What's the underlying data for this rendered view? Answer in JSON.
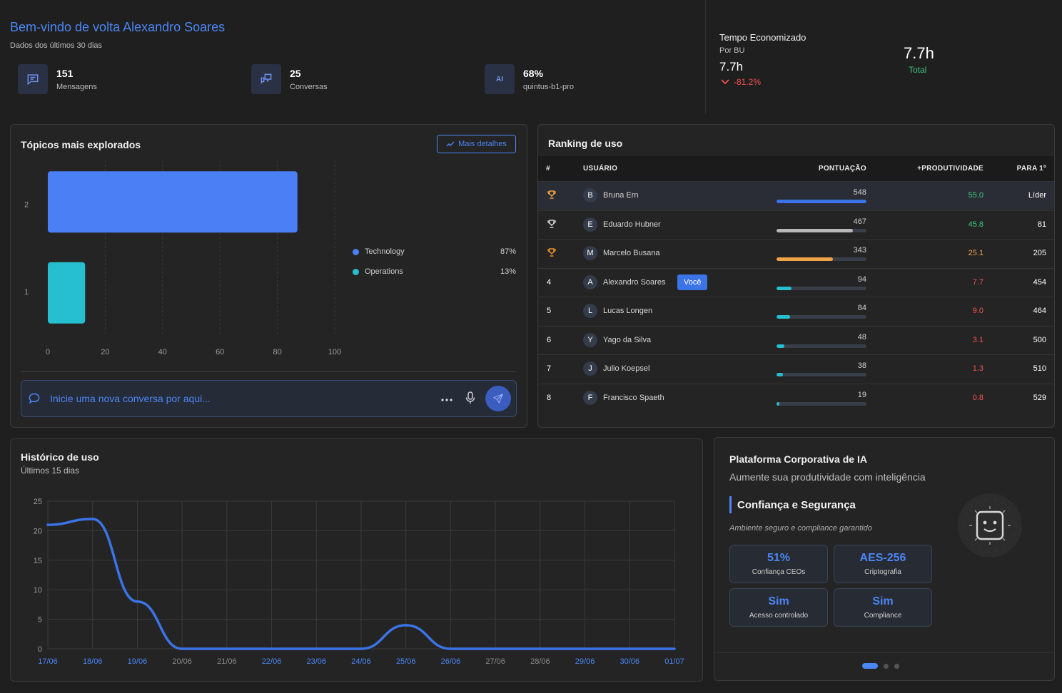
{
  "header": {
    "welcome": "Bem-vindo de volta Alexandro Soares",
    "subtitle": "Dados dos últimos 30 dias",
    "stats": [
      {
        "value": "151",
        "label": "Mensagens",
        "icon": "message-icon"
      },
      {
        "value": "25",
        "label": "Conversas",
        "icon": "conversations-icon"
      },
      {
        "value": "68%",
        "label": "quintus-b1-pro",
        "icon": "ai-icon",
        "icon_text": "AI"
      }
    ],
    "time_saved": {
      "title": "Tempo Economizado",
      "by": "Por BU",
      "value": "7.7h",
      "delta": "-81.2%",
      "total_value": "7.7h",
      "total_label": "Total"
    }
  },
  "topics": {
    "title": "Tópicos mais explorados",
    "more_button": "Mais detalhes",
    "legend": [
      {
        "name": "Technology",
        "pct": "87%",
        "color": "#4b7ff5"
      },
      {
        "name": "Operations",
        "pct": "13%",
        "color": "#26bfcf"
      }
    ],
    "chat_placeholder": "Inicie uma nova conversa por aqui..."
  },
  "ranking": {
    "title": "Ranking de uso",
    "columns": [
      "#",
      "USUÁRIO",
      "PONTUAÇÃO",
      "+PRODUTIVIDADE",
      "PARA 1º"
    ],
    "you_badge": "Você",
    "rows": [
      {
        "rank": "",
        "trophy": "gold",
        "initial": "B",
        "name": "Bruna Ern",
        "score": "548",
        "pct": 1.0,
        "bar_color": "#3b74e6",
        "prod": "55.0",
        "prod_color": "#3ec47c",
        "para": "Líder",
        "you": false
      },
      {
        "rank": "",
        "trophy": "silver",
        "initial": "E",
        "name": "Eduardo Hubner",
        "score": "467",
        "pct": 0.85,
        "bar_color": "#b8b8b8",
        "prod": "45.8",
        "prod_color": "#3ec47c",
        "para": "81",
        "you": false
      },
      {
        "rank": "",
        "trophy": "bronze",
        "initial": "M",
        "name": "Marcelo Busana",
        "score": "343",
        "pct": 0.63,
        "bar_color": "#f0a347",
        "prod": "25.1",
        "prod_color": "#f0a347",
        "para": "205",
        "you": false
      },
      {
        "rank": "4",
        "trophy": "",
        "initial": "A",
        "name": "Alexandro Soares",
        "score": "94",
        "pct": 0.17,
        "bar_color": "#26bfcf",
        "prod": "7.7",
        "prod_color": "#ef5350",
        "para": "454",
        "you": true
      },
      {
        "rank": "5",
        "trophy": "",
        "initial": "L",
        "name": "Lucas Longen",
        "score": "84",
        "pct": 0.15,
        "bar_color": "#26bfcf",
        "prod": "9.0",
        "prod_color": "#ef5350",
        "para": "464",
        "you": false
      },
      {
        "rank": "6",
        "trophy": "",
        "initial": "Y",
        "name": "Yago da Silva",
        "score": "48",
        "pct": 0.09,
        "bar_color": "#26bfcf",
        "prod": "3.1",
        "prod_color": "#ef5350",
        "para": "500",
        "you": false
      },
      {
        "rank": "7",
        "trophy": "",
        "initial": "J",
        "name": "Julio Koepsel",
        "score": "38",
        "pct": 0.07,
        "bar_color": "#26bfcf",
        "prod": "1.3",
        "prod_color": "#ef5350",
        "para": "510",
        "you": false
      },
      {
        "rank": "8",
        "trophy": "",
        "initial": "F",
        "name": "Francisco Spaeth",
        "score": "19",
        "pct": 0.03,
        "bar_color": "#26bfcf",
        "prod": "0.8",
        "prod_color": "#ef5350",
        "para": "529",
        "you": false
      }
    ]
  },
  "history": {
    "title": "Histórico de uso",
    "subtitle": "Últimos 15 dias"
  },
  "platform": {
    "title": "Plataforma Corporativa de IA",
    "subtitle": "Aumente sua produtividade com inteligência",
    "heading": "Confiança e Segurança",
    "description": "Ambiente seguro e compliance garantido",
    "tiles": [
      {
        "value": "51%",
        "label": "Confiança CEOs"
      },
      {
        "value": "AES-256",
        "label": "Criptografia"
      },
      {
        "value": "Sim",
        "label": "Acesso controlado"
      },
      {
        "value": "Sim",
        "label": "Compliance"
      }
    ]
  },
  "chart_data": [
    {
      "type": "bar",
      "orientation": "horizontal",
      "categories": [
        "2",
        "1"
      ],
      "values": [
        87,
        13
      ],
      "colors": [
        "#4b7ff5",
        "#26bfcf"
      ],
      "xlim": [
        0,
        100
      ],
      "xticks": [
        "0",
        "20",
        "40",
        "60",
        "80",
        "100"
      ],
      "grid": true
    },
    {
      "type": "line",
      "x": [
        "17/06",
        "18/06",
        "19/06",
        "20/06",
        "21/06",
        "22/06",
        "23/06",
        "24/06",
        "25/06",
        "26/06",
        "27/06",
        "28/06",
        "29/06",
        "30/06",
        "01/07"
      ],
      "values": [
        21,
        22,
        8,
        0,
        0,
        0,
        0,
        0,
        4,
        0,
        0,
        0,
        0,
        0,
        0
      ],
      "ylim": [
        0,
        25
      ],
      "yticks": [
        "0",
        "5",
        "10",
        "15",
        "20",
        "25"
      ],
      "color": "#3b74e6",
      "highlight_x": [
        "17/06",
        "18/06",
        "19/06",
        "22/06",
        "23/06",
        "24/06",
        "25/06",
        "26/06",
        "29/06",
        "30/06",
        "01/07"
      ],
      "grid": true
    }
  ]
}
